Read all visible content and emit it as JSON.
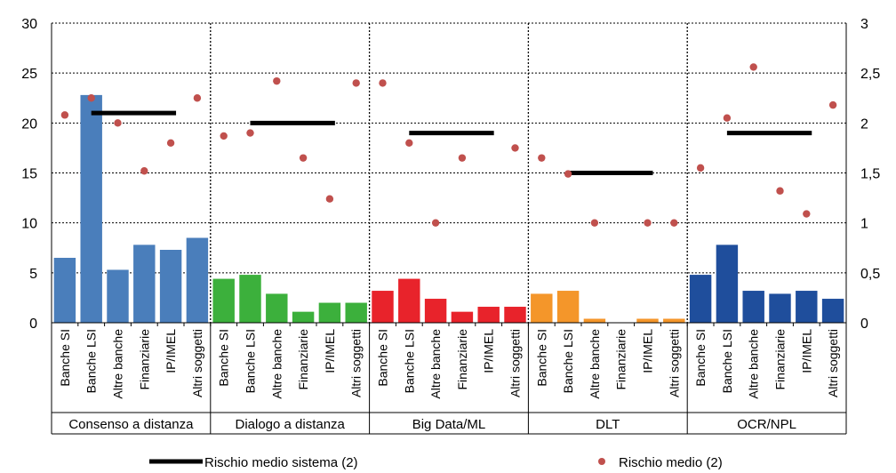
{
  "chart_data": {
    "type": "bar",
    "groups": [
      "Consenso a distanza",
      "Dialogo a distanza",
      "Big Data/ML",
      "DLT",
      "OCR/NPL"
    ],
    "categories": [
      "Banche SI",
      "Banche LSI",
      "Altre banche",
      "Finanziarie",
      "IP/IMEL",
      "Altri soggetti"
    ],
    "group_colors": [
      "#4a7ebb",
      "#3cb03c",
      "#e8232b",
      "#f4962a",
      "#1f4e9c"
    ],
    "bar_values": [
      [
        6.5,
        22.8,
        5.3,
        7.8,
        7.3,
        8.5
      ],
      [
        4.4,
        4.8,
        2.9,
        1.1,
        2.0,
        2.0
      ],
      [
        3.2,
        4.4,
        2.4,
        1.1,
        1.6,
        1.6
      ],
      [
        2.9,
        3.2,
        0.4,
        0,
        0.4,
        0.4
      ],
      [
        4.8,
        7.8,
        3.2,
        2.9,
        3.2,
        2.4
      ]
    ],
    "risk_dots": [
      [
        2.08,
        2.25,
        2.0,
        1.52,
        1.8,
        2.25
      ],
      [
        1.87,
        1.9,
        2.42,
        1.65,
        1.24,
        2.4
      ],
      [
        2.4,
        1.8,
        1.0,
        1.65,
        null,
        1.75
      ],
      [
        1.65,
        1.49,
        1.0,
        null,
        1.0,
        1.0
      ],
      [
        1.55,
        2.05,
        2.56,
        1.32,
        1.09,
        2.18
      ]
    ],
    "system_risk": [
      2.1,
      2.0,
      1.9,
      1.5,
      1.9
    ],
    "left_axis": {
      "min": 0,
      "max": 30,
      "ticks": [
        "0",
        "5",
        "10",
        "15",
        "20",
        "25",
        "30"
      ]
    },
    "right_axis": {
      "min": 0,
      "max": 3,
      "ticks": [
        "0",
        "0,5",
        "1",
        "1,5",
        "2",
        "2,5",
        "3"
      ]
    },
    "dot_color": "#c0504d",
    "line_color": "#000000",
    "legend": {
      "line_label": "Rischio medio sistema (2)",
      "dot_label": "Rischio medio (2)",
      "position": "bottom"
    }
  }
}
